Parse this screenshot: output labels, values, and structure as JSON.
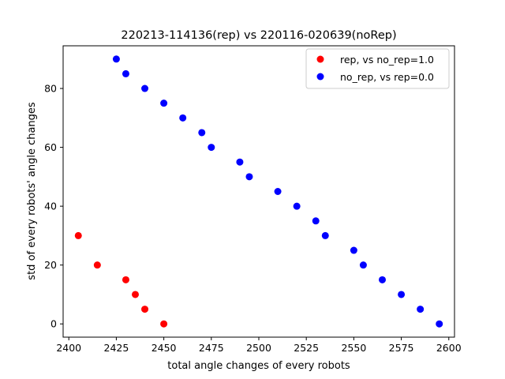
{
  "chart_data": {
    "type": "scatter",
    "title": "220213-114136(rep) vs 220116-020639(noRep)",
    "xlabel": "total angle changes of every robots",
    "ylabel": "std of every robots' angle changes",
    "xlim": [
      2397,
      2603
    ],
    "ylim": [
      -4.5,
      94.5
    ],
    "xticks": [
      2400,
      2425,
      2450,
      2475,
      2500,
      2525,
      2550,
      2575,
      2600
    ],
    "yticks": [
      0,
      20,
      40,
      60,
      80
    ],
    "grid": false,
    "legend_position": "top-right",
    "series": [
      {
        "name": "rep, vs no_rep=1.0",
        "color": "#ff0000",
        "points": [
          [
            2405,
            30
          ],
          [
            2415,
            20
          ],
          [
            2430,
            15
          ],
          [
            2435,
            10
          ],
          [
            2440,
            5
          ],
          [
            2450,
            0
          ]
        ]
      },
      {
        "name": "no_rep, vs rep=0.0",
        "color": "#0000ff",
        "points": [
          [
            2425,
            90
          ],
          [
            2430,
            85
          ],
          [
            2440,
            80
          ],
          [
            2450,
            75
          ],
          [
            2460,
            70
          ],
          [
            2470,
            65
          ],
          [
            2475,
            60
          ],
          [
            2490,
            55
          ],
          [
            2495,
            50
          ],
          [
            2510,
            45
          ],
          [
            2520,
            40
          ],
          [
            2530,
            35
          ],
          [
            2535,
            30
          ],
          [
            2550,
            25
          ],
          [
            2555,
            20
          ],
          [
            2565,
            15
          ],
          [
            2575,
            10
          ],
          [
            2585,
            5
          ],
          [
            2595,
            0
          ]
        ]
      }
    ]
  }
}
